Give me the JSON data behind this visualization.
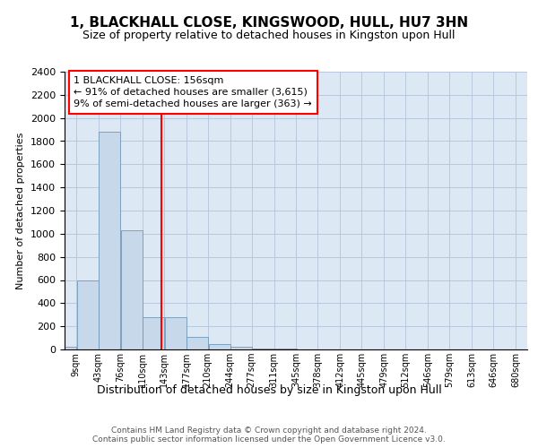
{
  "title": "1, BLACKHALL CLOSE, KINGSWOOD, HULL, HU7 3HN",
  "subtitle": "Size of property relative to detached houses in Kingston upon Hull",
  "xlabel": "Distribution of detached houses by size in Kingston upon Hull",
  "ylabel": "Number of detached properties",
  "footer_line1": "Contains HM Land Registry data © Crown copyright and database right 2024.",
  "footer_line2": "Contains public sector information licensed under the Open Government Licence v3.0.",
  "bin_labels": [
    "9sqm",
    "43sqm",
    "76sqm",
    "110sqm",
    "143sqm",
    "177sqm",
    "210sqm",
    "244sqm",
    "277sqm",
    "311sqm",
    "345sqm",
    "378sqm",
    "412sqm",
    "445sqm",
    "479sqm",
    "512sqm",
    "546sqm",
    "579sqm",
    "613sqm",
    "646sqm",
    "680sqm"
  ],
  "bin_left_edges": [
    9,
    43,
    76,
    110,
    143,
    177,
    210,
    244,
    277,
    311,
    345,
    378,
    412,
    445,
    479,
    512,
    546,
    579,
    613,
    646,
    680
  ],
  "bin_width": 33,
  "bar_heights": [
    25,
    600,
    1880,
    1030,
    280,
    280,
    110,
    50,
    25,
    10,
    5,
    2,
    0,
    0,
    0,
    0,
    0,
    0,
    0,
    0,
    0
  ],
  "bar_color": "#c8d8eb",
  "bar_edge_color": "#7098b8",
  "grid_color": "#b8c8dc",
  "background_color": "#dce8f4",
  "property_line_x": 156,
  "property_line_color": "red",
  "annotation_line1": "1 BLACKHALL CLOSE: 156sqm",
  "annotation_line2": "← 91% of detached houses are smaller (3,615)",
  "annotation_line3": "9% of semi-detached houses are larger (363) →",
  "annotation_box_facecolor": "white",
  "annotation_box_edgecolor": "red",
  "ylim": [
    0,
    2400
  ],
  "yticks": [
    0,
    200,
    400,
    600,
    800,
    1000,
    1200,
    1400,
    1600,
    1800,
    2000,
    2200,
    2400
  ],
  "title_fontsize": 11,
  "subtitle_fontsize": 9,
  "ylabel_fontsize": 8,
  "xlabel_fontsize": 9,
  "ytick_fontsize": 8,
  "xtick_fontsize": 7
}
